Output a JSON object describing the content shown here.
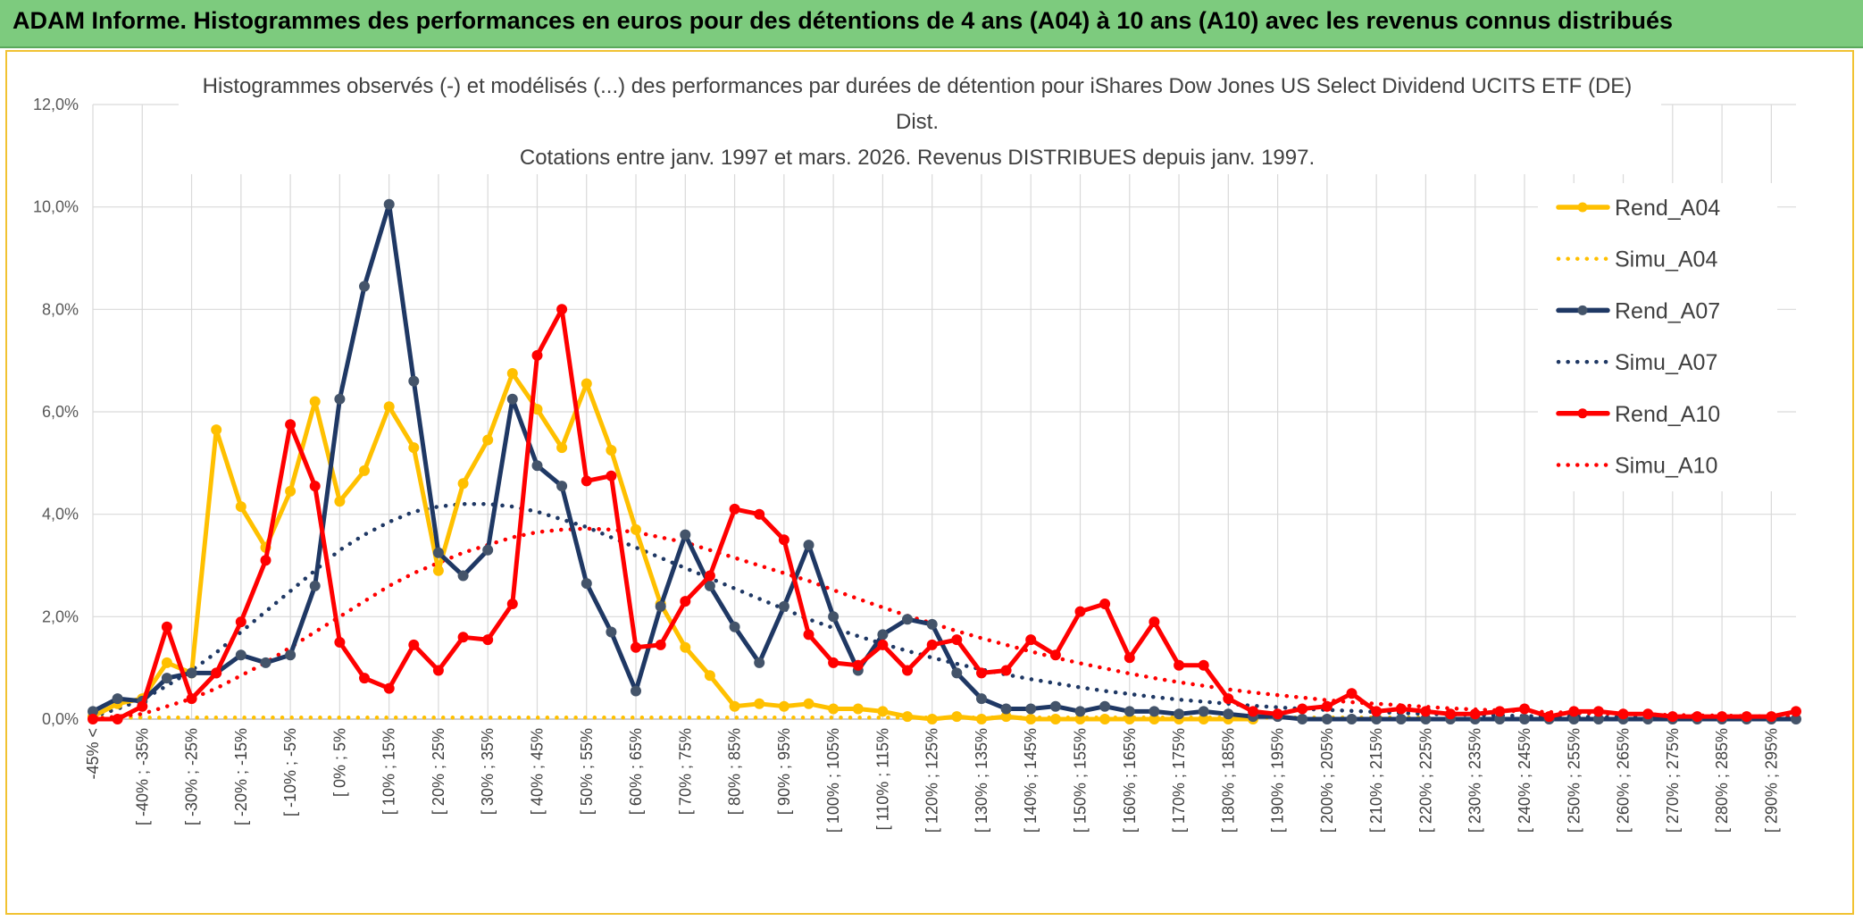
{
  "banner": {
    "title": "ADAM Informe. Histogrammes des performances en euros pour des détentions de 4 ans (A04) à 10 ans (A10) avec les revenus connus distribués"
  },
  "chart_data": {
    "type": "line",
    "title_lines": [
      "Histogrammes observés (-) et modélisés (...) des performances par durées de détention pour iShares Dow Jones US Select Dividend UCITS ETF (DE)",
      "Dist.",
      "Cotations entre janv. 1997 et mars. 2026. Revenus DISTRIBUES depuis janv. 1997."
    ],
    "ylim": [
      0,
      12
    ],
    "yticks": [
      "0,0%",
      "2,0%",
      "4,0%",
      "6,0%",
      "8,0%",
      "10,0%",
      "12,0%"
    ],
    "categories": [
      "-45% <",
      "[ -45% ; -40%",
      "[ -40% ; -35%",
      "[ -35% ; -30%",
      "[ -30% ; -25%",
      "[ -25% ; -20%",
      "[ -20% ; -15%",
      "[ -15% ; -10%",
      "[ -10% ; -5%",
      "[ -5% ; 0%",
      "[ 0% ; 5%",
      "[ 5% ; 10%",
      "[ 10% ; 15%",
      "[ 15% ; 20%",
      "[ 20% ; 25%",
      "[ 25% ; 30%",
      "[ 30% ; 35%",
      "[ 35% ; 40%",
      "[ 40% ; 45%",
      "[ 45% ; 50%",
      "[ 50% ; 55%",
      "[ 55% ; 60%",
      "[ 60% ; 65%",
      "[ 65% ; 70%",
      "[ 70% ; 75%",
      "[ 75% ; 80%",
      "[ 80% ; 85%",
      "[ 85% ; 90%",
      "[ 90% ; 95%",
      "[ 95% ; 100%",
      "[ 100% ; 105%",
      "[ 105% ; 110%",
      "[ 110% ; 115%",
      "[ 115% ; 120%",
      "[ 120% ; 125%",
      "[ 125% ; 130%",
      "[ 130% ; 135%",
      "[ 135% ; 140%",
      "[ 140% ; 145%",
      "[ 145% ; 150%",
      "[ 150% ; 155%",
      "[ 155% ; 160%",
      "[ 160% ; 165%",
      "[ 165% ; 170%",
      "[ 170% ; 175%",
      "[ 175% ; 180%",
      "[ 180% ; 185%",
      "[ 185% ; 190%",
      "[ 190% ; 195%",
      "[ 195% ; 200%",
      "[ 200% ; 205%",
      "[ 205% ; 210%",
      "[ 210% ; 215%",
      "[ 215% ; 220%",
      "[ 220% ; 225%",
      "[ 225% ; 230%",
      "[ 230% ; 235%",
      "[ 235% ; 240%",
      "[ 240% ; 245%",
      "[ 245% ; 250%",
      "[ 250% ; 255%",
      "[ 255% ; 260%",
      "[ 260% ; 265%",
      "[ 265% ; 270%",
      "[ 270% ; 275%",
      "[ 275% ; 280%",
      "[ 280% ; 285%",
      "[ 285% ; 290%",
      "[ 290% ; 295%",
      "[ 295% ; 300%"
    ],
    "shown_tick_labels": [
      "-45% <",
      "[ -40% ; -35%",
      "[ -30% ; -25%",
      "[ -20% ; -15%",
      "[ -10% ; -5%",
      "[ 0% ; 5%",
      "[ 10% ; 15%",
      "[ 20% ; 25%",
      "[ 30% ; 35%",
      "[ 40% ; 45%",
      "[ 50% ; 55%",
      "[ 60% ; 65%",
      "[ 70% ; 75%",
      "[ 80% ; 85%",
      "[ 90% ; 95%",
      "[ 100% ; 105%",
      "[ 110% ; 115%",
      "[ 120% ; 125%",
      "[ 130% ; 135%",
      "[ 140% ; 145%",
      "[ 150% ; 155%",
      "[ 160% ; 165%",
      "[ 170% ; 175%",
      "[ 180% ; 185%",
      "[ 190% ; 195%",
      "[ 200% ; 205%",
      "[ 210% ; 215%",
      "[ 220% ; 225%",
      "[ 230% ; 235%",
      "[ 240% ; 245%",
      "[ 250% ; 255%",
      "[ 260% ; 265%",
      "[ 270% ; 275%",
      "[ 280% ; 285%",
      "[ 290% ; 295%"
    ],
    "series": [
      {
        "name": "Rend_A04",
        "style": "solid",
        "color": "#ffc000",
        "markers": true,
        "values": [
          0.05,
          0.3,
          0.4,
          1.1,
          0.9,
          5.65,
          4.15,
          3.35,
          4.45,
          6.2,
          4.25,
          4.85,
          6.1,
          5.3,
          2.9,
          4.6,
          5.45,
          6.75,
          6.05,
          5.3,
          6.55,
          5.25,
          3.7,
          2.25,
          1.4,
          0.85,
          0.25,
          0.3,
          0.25,
          0.3,
          0.2,
          0.2,
          0.15,
          0.05,
          0.0,
          0.05,
          0.0,
          0.05,
          0.0,
          0.0,
          0.0,
          0.0,
          0.0,
          0.0,
          0.0,
          0.0,
          0.0,
          0.0,
          null,
          null,
          null,
          null,
          null,
          null,
          null,
          null,
          null,
          null,
          null,
          null,
          null,
          null,
          null,
          null,
          null,
          null,
          null,
          null,
          null,
          null
        ]
      },
      {
        "name": "Simu_A04",
        "style": "dotted",
        "color": "#ffc000",
        "markers": false,
        "values": [
          0.03,
          0.03,
          0.03,
          0.03,
          0.03,
          0.03,
          0.03,
          0.03,
          0.03,
          0.03,
          0.03,
          0.03,
          0.03,
          0.03,
          0.03,
          0.03,
          0.03,
          0.03,
          0.03,
          0.03,
          0.03,
          0.03,
          0.03,
          0.03,
          0.03,
          0.03,
          0.03,
          0.03,
          0.03,
          0.03,
          0.03,
          0.03,
          0.03,
          0.03,
          0.03,
          0.03,
          0.03,
          0.03,
          0.03,
          0.03,
          0.03,
          0.03,
          0.03,
          0.03,
          0.03,
          0.03,
          0.03,
          0.03,
          0.03,
          0.03,
          0.03,
          0.03,
          0.03,
          0.03,
          0.03,
          null,
          null,
          null,
          null,
          null,
          null,
          null,
          null,
          null,
          null,
          null,
          null,
          null,
          null,
          null
        ]
      },
      {
        "name": "Rend_A07",
        "style": "solid",
        "color": "#1f3864",
        "markers": true,
        "values": [
          0.15,
          0.4,
          0.35,
          0.8,
          0.9,
          0.9,
          1.25,
          1.1,
          1.25,
          2.6,
          6.25,
          8.45,
          10.05,
          6.6,
          3.25,
          2.8,
          3.3,
          6.25,
          4.95,
          4.55,
          2.65,
          1.7,
          0.55,
          2.2,
          3.6,
          2.6,
          1.8,
          1.1,
          2.2,
          3.4,
          2.0,
          0.95,
          1.65,
          1.95,
          1.85,
          0.9,
          0.4,
          0.2,
          0.2,
          0.25,
          0.15,
          0.25,
          0.15,
          0.15,
          0.1,
          0.15,
          0.1,
          0.05,
          0.05,
          0.0,
          0.0,
          0.0,
          0.0,
          0.0,
          0.0,
          0.0,
          0.0,
          0.0,
          0.0,
          0.0,
          0.0,
          0.0,
          0.0,
          0.0,
          0.0,
          0.0,
          0.0,
          0.0,
          0.0,
          0.0
        ]
      },
      {
        "name": "Simu_A07",
        "style": "dotted",
        "color": "#1f3864",
        "markers": false,
        "values": [
          0.05,
          0.2,
          0.38,
          0.65,
          0.95,
          1.3,
          1.7,
          2.1,
          2.5,
          2.9,
          3.3,
          3.6,
          3.85,
          4.05,
          4.15,
          4.2,
          4.2,
          4.15,
          4.05,
          3.9,
          3.75,
          3.55,
          3.35,
          3.15,
          2.95,
          2.75,
          2.55,
          2.35,
          2.15,
          1.95,
          1.78,
          1.62,
          1.47,
          1.33,
          1.2,
          1.08,
          0.97,
          0.87,
          0.78,
          0.7,
          0.62,
          0.55,
          0.49,
          0.43,
          0.38,
          0.34,
          0.3,
          0.26,
          0.23,
          0.2,
          0.18,
          0.16,
          0.14,
          0.12,
          0.1,
          0.09,
          0.08,
          0.07,
          0.06,
          0.05,
          0.05,
          0.04,
          0.04,
          0.03,
          0.03,
          0.03,
          0.02,
          0.02,
          0.02,
          0.02
        ]
      },
      {
        "name": "Rend_A10",
        "style": "solid",
        "color": "#ff0000",
        "markers": true,
        "values": [
          0.0,
          0.0,
          0.25,
          1.8,
          0.4,
          0.9,
          1.9,
          3.1,
          5.75,
          4.55,
          1.5,
          0.8,
          0.6,
          1.45,
          0.95,
          1.6,
          1.55,
          2.25,
          7.1,
          8.0,
          4.65,
          4.75,
          1.4,
          1.45,
          2.3,
          2.8,
          4.1,
          4.0,
          3.5,
          1.65,
          1.1,
          1.05,
          1.45,
          0.95,
          1.45,
          1.55,
          0.9,
          0.95,
          1.55,
          1.25,
          2.1,
          2.25,
          1.2,
          1.9,
          1.05,
          1.05,
          0.4,
          0.15,
          0.1,
          0.2,
          0.25,
          0.5,
          0.15,
          0.2,
          0.15,
          0.1,
          0.1,
          0.15,
          0.2,
          0.05,
          0.15,
          0.15,
          0.1,
          0.1,
          0.05,
          0.05,
          0.05,
          0.05,
          0.05,
          0.15
        ]
      },
      {
        "name": "Simu_A10",
        "style": "dotted",
        "color": "#ff0000",
        "markers": false,
        "values": [
          0.0,
          0.05,
          0.1,
          0.25,
          0.4,
          0.6,
          0.85,
          1.1,
          1.4,
          1.7,
          2.0,
          2.3,
          2.6,
          2.85,
          3.05,
          3.25,
          3.4,
          3.55,
          3.65,
          3.7,
          3.72,
          3.7,
          3.65,
          3.55,
          3.45,
          3.3,
          3.15,
          3.0,
          2.85,
          2.7,
          2.52,
          2.35,
          2.18,
          2.02,
          1.87,
          1.72,
          1.58,
          1.45,
          1.32,
          1.2,
          1.09,
          0.99,
          0.89,
          0.8,
          0.72,
          0.65,
          0.58,
          0.52,
          0.47,
          0.42,
          0.37,
          0.33,
          0.3,
          0.27,
          0.24,
          0.21,
          0.19,
          0.17,
          0.15,
          0.14,
          0.12,
          0.11,
          0.1,
          0.09,
          0.08,
          0.07,
          0.07,
          0.06,
          0.05,
          0.05
        ]
      }
    ],
    "legend": {
      "position": "right",
      "entries": [
        "Rend_A04",
        "Simu_A04",
        "Rend_A07",
        "Simu_A07",
        "Rend_A10",
        "Simu_A10"
      ]
    },
    "grid": true
  }
}
